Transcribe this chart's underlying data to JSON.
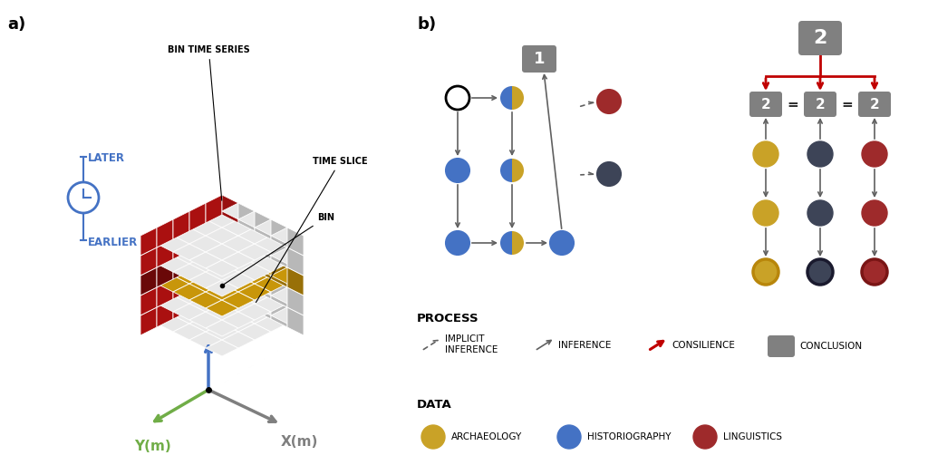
{
  "bg_color": "#ffffff",
  "panel_a_label": "a)",
  "panel_b_label": "b)",
  "later_text": "LATER",
  "earlier_text": "EARLIER",
  "bin_time_series_text": "BIN TIME SERIES",
  "time_slice_text": "TIME SLICE",
  "bin_text": "BIN",
  "z_label": "Z(t)",
  "y_label": "Y(m)",
  "x_label": "X(m)",
  "axis_color_z": "#4472C4",
  "axis_color_y": "#70AD47",
  "axis_color_x": "#7F7F7F",
  "later_earlier_color": "#4472C4",
  "cube_top_light": "#E8E8E8",
  "cube_left_light": "#D0D0D0",
  "cube_right_light": "#B8B8B8",
  "cube_red_top": "#CC2020",
  "cube_red_left": "#AA1010",
  "cube_red_right": "#991010",
  "cube_gold_top": "#C8960A",
  "cube_gold_left": "#A87808",
  "cube_gold_right": "#987008",
  "cube_bin_top": "#888888",
  "cube_bin_left": "#686868",
  "cube_bin_right": "#585858",
  "color_arch": "#C9A227",
  "color_hist": "#4472C4",
  "color_ling": "#9E2A2B",
  "color_popgen": "#3D4457",
  "color_grey_box": "#808080",
  "color_red_arrow": "#C00000",
  "ec_color": "#ffffff"
}
